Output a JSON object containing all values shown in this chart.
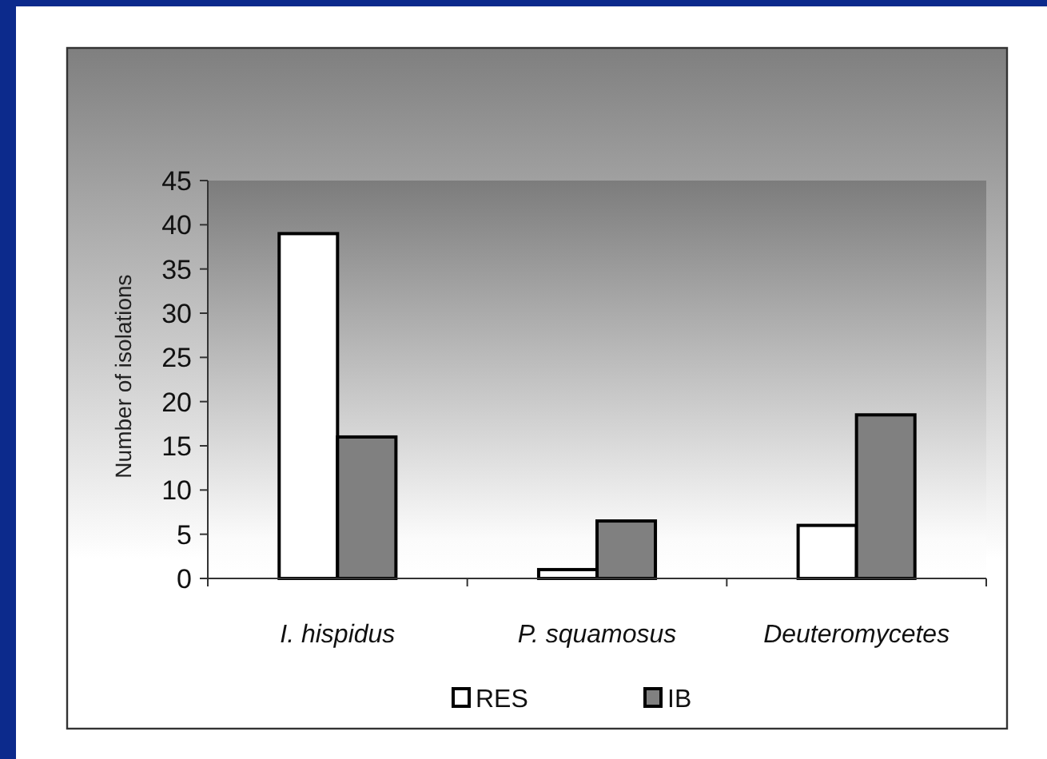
{
  "chart_data": {
    "type": "bar",
    "ylabel": "Number of isolations",
    "categories": [
      "I. hispidus",
      "P. squamosus",
      "Deuteromycetes"
    ],
    "series": [
      {
        "name": "RES",
        "color": "#ffffff",
        "values": [
          39,
          1,
          6
        ]
      },
      {
        "name": "IB",
        "color": "#808080",
        "values": [
          16,
          6.5,
          18.5
        ]
      }
    ],
    "ylim": [
      0,
      45
    ],
    "yticks": [
      0,
      5,
      10,
      15,
      20,
      25,
      30,
      35,
      40,
      45
    ],
    "legend": "bottom"
  }
}
